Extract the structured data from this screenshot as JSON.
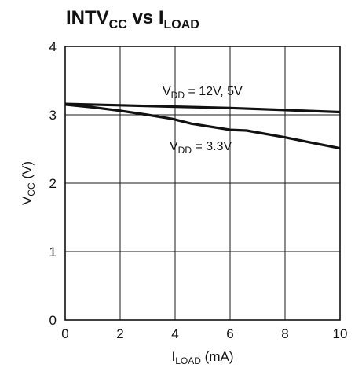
{
  "chart_data": {
    "type": "line",
    "title": {
      "main": "INTV",
      "sub1": "CC",
      "mid": " vs I",
      "sub2": "LOAD"
    },
    "xlabel": {
      "main": "I",
      "sub": "LOAD",
      "rest": " (mA)"
    },
    "ylabel": {
      "main": "V",
      "sub": "CC",
      "rest": " (V)"
    },
    "xlim": [
      0,
      10
    ],
    "ylim": [
      0,
      4
    ],
    "xticks": [
      "0",
      "2",
      "4",
      "6",
      "8",
      "10"
    ],
    "yticks": [
      "0",
      "1",
      "2",
      "3",
      "4"
    ],
    "grid": true,
    "legend": "none",
    "series": [
      {
        "name": {
          "main": "V",
          "sub": "DD",
          "rest": " = 12V, 5V"
        },
        "x": [
          0,
          2,
          4,
          6,
          8,
          10
        ],
        "y": [
          3.16,
          3.14,
          3.12,
          3.1,
          3.07,
          3.04
        ]
      },
      {
        "name": {
          "main": "V",
          "sub": "DD",
          "rest": " = 3.3V"
        },
        "x": [
          0,
          1,
          2,
          3,
          3.9,
          4.6,
          6.0,
          6.6,
          8,
          9,
          10
        ],
        "y": [
          3.15,
          3.11,
          3.06,
          3.0,
          2.94,
          2.87,
          2.78,
          2.77,
          2.67,
          2.59,
          2.51
        ]
      }
    ]
  }
}
